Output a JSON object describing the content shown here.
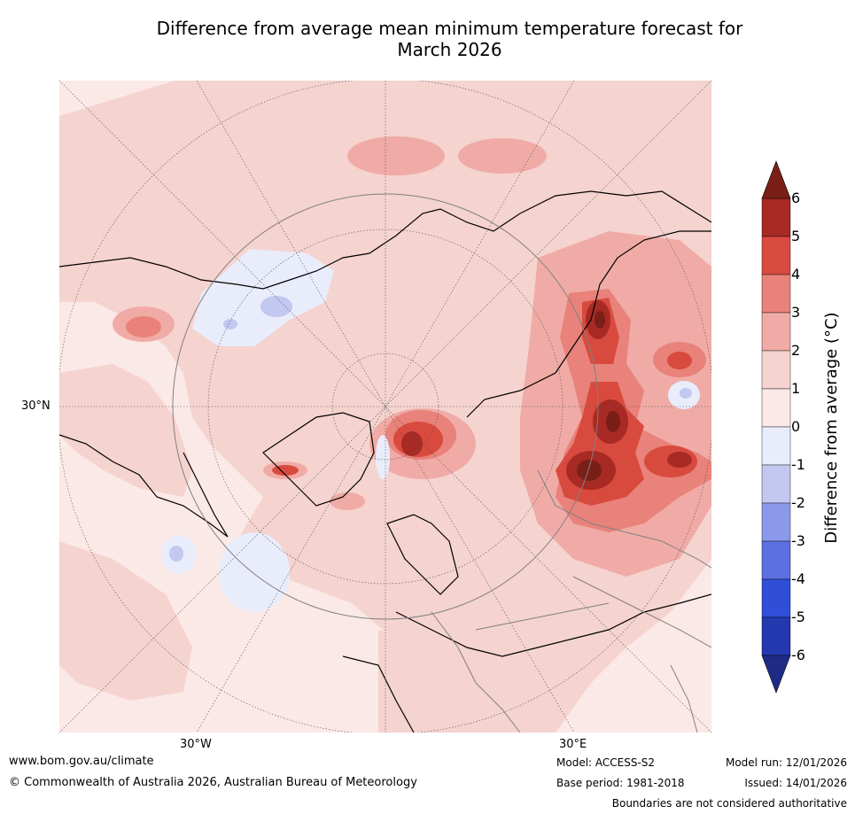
{
  "title_line1": "Difference from average mean minimum temperature forecast for",
  "title_line2": "March 2026",
  "map": {
    "label_lat": "30°N",
    "label_lon_west": "30°W",
    "label_lon_east": "30°E",
    "projection": "North polar stereographic",
    "ocean_color": "#fbe9e7"
  },
  "colorbar": {
    "label": "Difference from average (°C)",
    "ticks": [
      "6",
      "5",
      "4",
      "3",
      "2",
      "1",
      "0",
      "-1",
      "-2",
      "-3",
      "-4",
      "-5",
      "-6"
    ],
    "colors_top_to_bottom": [
      "#a82a24",
      "#d94a3e",
      "#e8827a",
      "#f0aba6",
      "#f5d3cf",
      "#fbe9e7",
      "#e9ecfb",
      "#c3c8f1",
      "#8c99ea",
      "#5c70e1",
      "#2f4fd8",
      "#2438b0"
    ],
    "over_color": "#7a1f17",
    "under_color": "#1e2c87"
  },
  "footer": {
    "website": "www.bom.gov.au/climate",
    "copyright": "© Commonwealth of Australia 2026, Australian Bureau of Meteorology",
    "model": "Model: ACCESS-S2",
    "base_period": "Base period: 1981-2018",
    "model_run": "Model run: 12/01/2026",
    "issued": "Issued: 14/01/2026",
    "disclaimer": "Boundaries are not considered authoritative"
  }
}
